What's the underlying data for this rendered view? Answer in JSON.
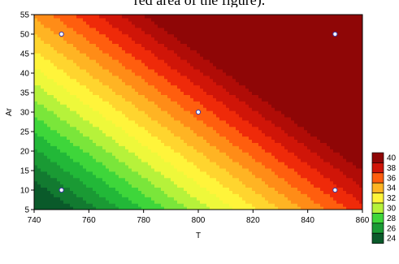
{
  "caption_fragment": "red area of the figure).",
  "chart_data": {
    "type": "heatmap",
    "subtype": "filled-contour",
    "title": "",
    "xlabel": "T",
    "ylabel": "Ar",
    "xlim": [
      740,
      860
    ],
    "ylim": [
      5,
      55
    ],
    "x_ticks": [
      "740",
      "760",
      "780",
      "800",
      "820",
      "840",
      "860"
    ],
    "y_ticks": [
      "5",
      "10",
      "15",
      "20",
      "25",
      "30",
      "35",
      "40",
      "45",
      "50",
      "55"
    ],
    "grid": false,
    "surface": {
      "description": "linear response surface",
      "z_at_740_5": 23.2,
      "dz_per_T": 0.12,
      "dz_per_Ar": 0.24
    },
    "levels": [
      24,
      25,
      26,
      27,
      28,
      29,
      30,
      31,
      32,
      33,
      34,
      35,
      36,
      37,
      38,
      39,
      40,
      41
    ],
    "level_colors": [
      "#0a5a2a",
      "#127a30",
      "#1a9a34",
      "#22b838",
      "#3ed63a",
      "#7ae63a",
      "#b6f23a",
      "#eef83a",
      "#fff43a",
      "#ffd52e",
      "#ffb423",
      "#ff8c17",
      "#ff5e0e",
      "#ef2a09",
      "#d01508",
      "#b00c07",
      "#8f0606",
      "#700303"
    ],
    "legend": {
      "placement": "right",
      "labels": [
        "40",
        "38",
        "36",
        "34",
        "32",
        "30",
        "28",
        "26",
        "24"
      ]
    },
    "design_points": [
      {
        "x": 750,
        "y": 50
      },
      {
        "x": 850,
        "y": 50
      },
      {
        "x": 800,
        "y": 30
      },
      {
        "x": 750,
        "y": 10
      },
      {
        "x": 850,
        "y": 10
      }
    ]
  }
}
